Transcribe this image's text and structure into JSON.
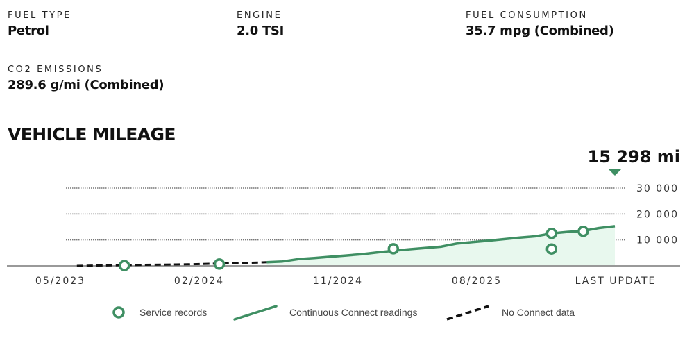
{
  "specs": [
    {
      "label": "FUEL TYPE",
      "value": "Petrol"
    },
    {
      "label": "ENGINE",
      "value": "2.0 TSI"
    },
    {
      "label": "FUEL CONSUMPTION",
      "value": "35.7 mpg (Combined)"
    },
    {
      "label": "CO2 EMISSIONS",
      "value": "289.6 g/mi (Combined)"
    }
  ],
  "section_title": "VEHICLE MILEAGE",
  "colors": {
    "accent": "#3f8f63",
    "fill": "#e8f8ee",
    "dashed": "#111111",
    "grid": "#777777",
    "axis": "#999999",
    "tick_text": "#333333"
  },
  "chart_data": {
    "type": "line",
    "title": "",
    "xlabel": "",
    "ylabel": "",
    "x_ticks": [
      "05/2023",
      "02/2024",
      "11/2024",
      "08/2025",
      "LAST UPDATE"
    ],
    "y_ticks": [
      "10 000",
      "20 000",
      "30 000"
    ],
    "ylim": [
      0,
      30000
    ],
    "current_value_label": "15 298 mi",
    "grid": true,
    "legend_placement": "bottom",
    "series": [
      {
        "name": "No Connect data",
        "style": "dashed",
        "points": [
          [
            "2023-06",
            0
          ],
          [
            "2023-09",
            300
          ],
          [
            "2024-01",
            600
          ],
          [
            "2024-05",
            1200
          ],
          [
            "2024-06",
            1400
          ]
        ]
      },
      {
        "name": "Continuous Connect readings",
        "style": "line",
        "points": [
          [
            "2024-06",
            1400
          ],
          [
            "2024-07",
            1700
          ],
          [
            "2024-08",
            2600
          ],
          [
            "2024-09",
            3000
          ],
          [
            "2024-10",
            3500
          ],
          [
            "2024-11",
            4000
          ],
          [
            "2024-12",
            4500
          ],
          [
            "2025-01",
            5200
          ],
          [
            "2025-02",
            5800
          ],
          [
            "2025-03",
            6400
          ],
          [
            "2025-04",
            6900
          ],
          [
            "2025-05",
            7400
          ],
          [
            "2025-06",
            8600
          ],
          [
            "2025-07",
            9200
          ],
          [
            "2025-08",
            9700
          ],
          [
            "2025-09",
            10300
          ],
          [
            "2025-10",
            10900
          ],
          [
            "2025-11",
            11400
          ],
          [
            "2025-12",
            12500
          ],
          [
            "2026-01",
            13100
          ],
          [
            "2026-02",
            13500
          ],
          [
            "2026-03",
            14600
          ],
          [
            "2026-04",
            15298
          ]
        ]
      }
    ],
    "service_records": [
      [
        "2023-09",
        100
      ],
      [
        "2024-03",
        700
      ],
      [
        "2025-02",
        6600
      ],
      [
        "2025-12",
        12500
      ],
      [
        "2025-12",
        6500
      ],
      [
        "2026-02",
        13300
      ]
    ],
    "legend": [
      {
        "label": "Service records",
        "marker": "circle"
      },
      {
        "label": "Continuous Connect readings",
        "marker": "line"
      },
      {
        "label": "No Connect data",
        "marker": "dashed"
      }
    ]
  }
}
